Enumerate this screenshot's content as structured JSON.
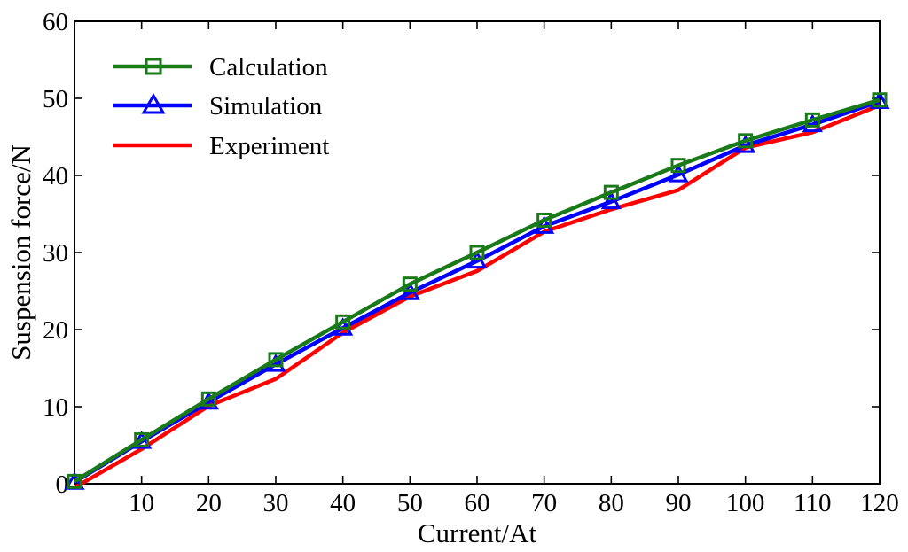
{
  "chart_data": {
    "type": "line",
    "xlabel": "Current/At",
    "ylabel": "Suspension force/N",
    "xlim": [
      0,
      120
    ],
    "ylim": [
      0,
      60
    ],
    "x_ticks": [
      10,
      20,
      30,
      40,
      50,
      60,
      70,
      80,
      90,
      100,
      110,
      120
    ],
    "y_ticks": [
      0,
      10,
      20,
      30,
      40,
      50,
      60
    ],
    "legend_position": "top-left",
    "grid": false,
    "x": [
      0,
      10,
      20,
      30,
      40,
      50,
      60,
      70,
      80,
      90,
      100,
      110,
      120
    ],
    "series": [
      {
        "name": "Calculation",
        "color": "#1a7a1a",
        "marker": "square",
        "values": [
          0.3,
          5.7,
          11.0,
          16.1,
          21.0,
          25.9,
          30.0,
          34.2,
          37.8,
          41.3,
          44.5,
          47.2,
          49.8
        ]
      },
      {
        "name": "Simulation",
        "color": "#0000ff",
        "marker": "triangle",
        "values": [
          0.2,
          5.5,
          10.6,
          15.5,
          20.2,
          24.8,
          28.9,
          33.4,
          36.6,
          40.1,
          43.9,
          46.6,
          49.6
        ]
      },
      {
        "name": "Experiment",
        "color": "#ff0000",
        "marker": "none",
        "values": [
          -0.5,
          4.5,
          10.1,
          13.6,
          19.6,
          24.3,
          27.6,
          32.7,
          35.6,
          38.1,
          43.6,
          45.6,
          49.1
        ]
      }
    ]
  }
}
